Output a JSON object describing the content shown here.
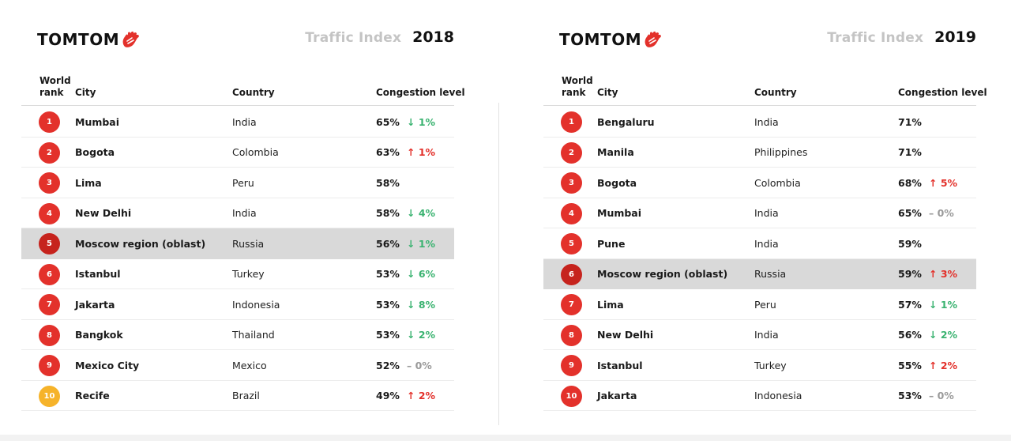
{
  "panels": [
    {
      "brand": "TOMTOM",
      "title": "Traffic Index",
      "year": "2018",
      "headers": {
        "rank": "World rank",
        "city": "City",
        "country": "Country",
        "level": "Congestion level"
      },
      "rows": [
        {
          "rank": "1",
          "city": "Mumbai",
          "country": "India",
          "level": "65%",
          "change": "↓ 1%",
          "trend": "down"
        },
        {
          "rank": "2",
          "city": "Bogota",
          "country": "Colombia",
          "level": "63%",
          "change": "↑ 1%",
          "trend": "up"
        },
        {
          "rank": "3",
          "city": "Lima",
          "country": "Peru",
          "level": "58%",
          "change": "",
          "trend": "none"
        },
        {
          "rank": "4",
          "city": "New Delhi",
          "country": "India",
          "level": "58%",
          "change": "↓ 4%",
          "trend": "down"
        },
        {
          "rank": "5",
          "city": "Moscow region (oblast)",
          "country": "Russia",
          "level": "56%",
          "change": "↓ 1%",
          "trend": "down",
          "highlight": true
        },
        {
          "rank": "6",
          "city": "Istanbul",
          "country": "Turkey",
          "level": "53%",
          "change": "↓ 6%",
          "trend": "down"
        },
        {
          "rank": "7",
          "city": "Jakarta",
          "country": "Indonesia",
          "level": "53%",
          "change": "↓ 8%",
          "trend": "down"
        },
        {
          "rank": "8",
          "city": "Bangkok",
          "country": "Thailand",
          "level": "53%",
          "change": "↓ 2%",
          "trend": "down"
        },
        {
          "rank": "9",
          "city": "Mexico City",
          "country": "Mexico",
          "level": "52%",
          "change": "– 0%",
          "trend": "flat"
        },
        {
          "rank": "10",
          "city": "Recife",
          "country": "Brazil",
          "level": "49%",
          "change": "↑ 2%",
          "trend": "up",
          "badge_color": "yellow"
        }
      ]
    },
    {
      "brand": "TOMTOM",
      "title": "Traffic Index",
      "year": "2019",
      "headers": {
        "rank": "World rank",
        "city": "City",
        "country": "Country",
        "level": "Congestion level"
      },
      "rows": [
        {
          "rank": "1",
          "city": "Bengaluru",
          "country": "India",
          "level": "71%",
          "change": "",
          "trend": "none"
        },
        {
          "rank": "2",
          "city": "Manila",
          "country": "Philippines",
          "level": "71%",
          "change": "",
          "trend": "none"
        },
        {
          "rank": "3",
          "city": "Bogota",
          "country": "Colombia",
          "level": "68%",
          "change": "↑ 5%",
          "trend": "up"
        },
        {
          "rank": "4",
          "city": "Mumbai",
          "country": "India",
          "level": "65%",
          "change": "– 0%",
          "trend": "flat"
        },
        {
          "rank": "5",
          "city": "Pune",
          "country": "India",
          "level": "59%",
          "change": "",
          "trend": "none"
        },
        {
          "rank": "6",
          "city": "Moscow region (oblast)",
          "country": "Russia",
          "level": "59%",
          "change": "↑ 3%",
          "trend": "up",
          "highlight": true
        },
        {
          "rank": "7",
          "city": "Lima",
          "country": "Peru",
          "level": "57%",
          "change": "↓ 1%",
          "trend": "down"
        },
        {
          "rank": "8",
          "city": "New Delhi",
          "country": "India",
          "level": "56%",
          "change": "↓ 2%",
          "trend": "down"
        },
        {
          "rank": "9",
          "city": "Istanbul",
          "country": "Turkey",
          "level": "55%",
          "change": "↑ 2%",
          "trend": "up"
        },
        {
          "rank": "10",
          "city": "Jakarta",
          "country": "Indonesia",
          "level": "53%",
          "change": "– 0%",
          "trend": "flat"
        }
      ]
    }
  ],
  "colors": {
    "badge_red": "#e3312b",
    "badge_yellow": "#f6b32a",
    "down": "#3bb371",
    "up": "#e3312b",
    "flat": "#9a9a9a",
    "highlight": "#d9d9d9"
  },
  "icons": {
    "logo": "tomtom-hand-logo-icon"
  }
}
